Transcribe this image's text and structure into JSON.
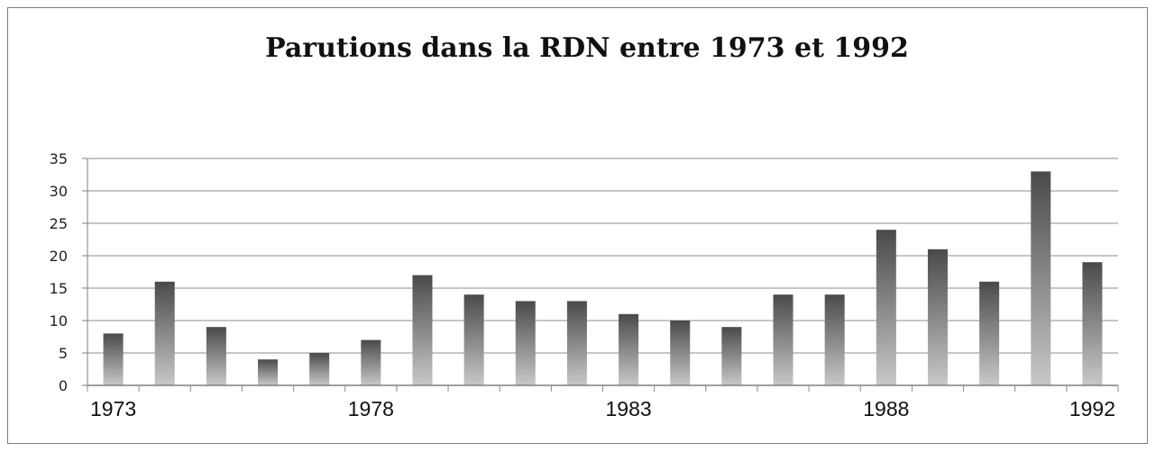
{
  "chart_data": {
    "type": "bar",
    "title": "Parutions dans la RDN entre 1973 et 1992",
    "xlabel": "",
    "ylabel": "",
    "categories": [
      "1973",
      "1974",
      "1975",
      "1976",
      "1977",
      "1978",
      "1979",
      "1980",
      "1981",
      "1982",
      "1983",
      "1984",
      "1985",
      "1986",
      "1987",
      "1988",
      "1989",
      "1990",
      "1991",
      "1992"
    ],
    "values": [
      8,
      16,
      9,
      4,
      5,
      7,
      17,
      14,
      13,
      13,
      11,
      10,
      9,
      14,
      14,
      24,
      21,
      16,
      33,
      19
    ],
    "ylim": [
      0,
      35
    ],
    "yticks": [
      "0",
      "5",
      "10",
      "15",
      "20",
      "25",
      "30",
      "35"
    ],
    "xtick_labels": [
      "1973",
      "1978",
      "1983",
      "1988",
      "1992"
    ],
    "grid": "horizontal",
    "legend": "none",
    "colors": {
      "bar_top": "#4a4a4a",
      "bar_bottom": "#c8c8c8",
      "grid": "#8c8c8c",
      "axis": "#7f7f7f"
    }
  }
}
